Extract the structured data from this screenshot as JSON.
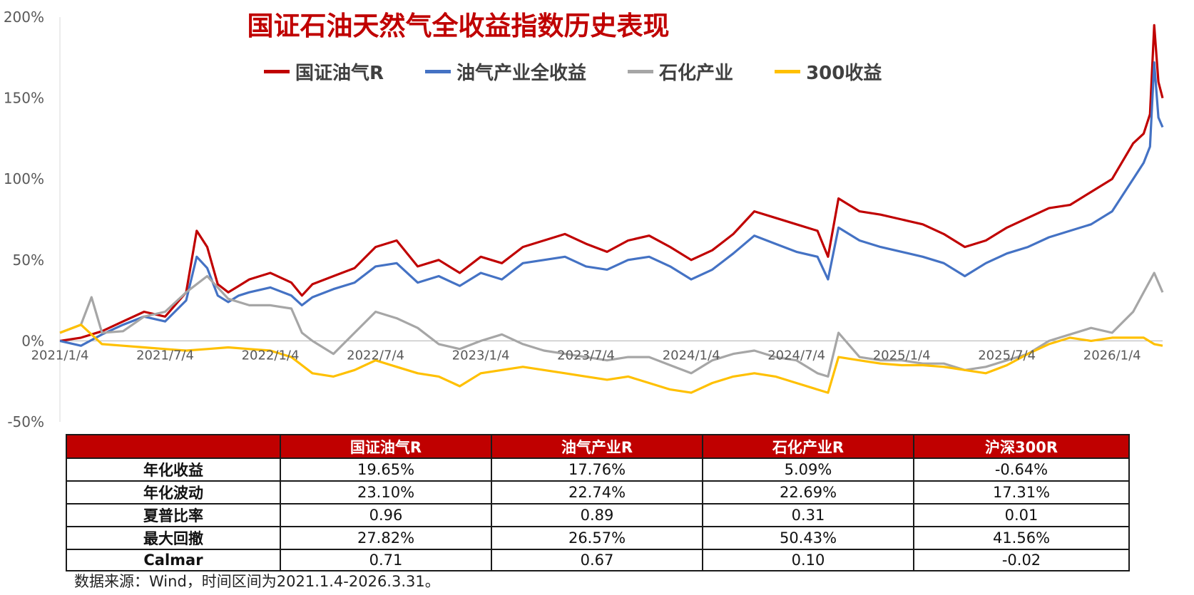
{
  "title": "国证石油天然气全收益指数历史表现",
  "legend": [
    {
      "label": "国证油气R",
      "color": "#c00000"
    },
    {
      "label": "油气产业全收益",
      "color": "#4472c4"
    },
    {
      "label": "石化产业",
      "color": "#a6a6a6"
    },
    {
      "label": "300收益",
      "color": "#ffc000"
    }
  ],
  "chart_data": {
    "type": "line",
    "ylim": [
      -50,
      200
    ],
    "yticks": [
      "200%",
      "150%",
      "100%",
      "50%",
      "0%",
      "-50%"
    ],
    "x_tick_labels": [
      "2021/1/4",
      "2021/7/4",
      "2022/1/4",
      "2022/7/4",
      "2023/1/4",
      "2023/7/4",
      "2024/1/4",
      "2024/7/4",
      "2025/1/4",
      "2025/7/4",
      "2026/1/4"
    ],
    "x_tick_positions": [
      0,
      0.5,
      1,
      1.5,
      2,
      2.5,
      3,
      3.5,
      4,
      4.5,
      5
    ],
    "xlim": [
      0,
      5.24
    ],
    "series": [
      {
        "name": "国证油气R",
        "color": "#c00000",
        "x": [
          0,
          0.1,
          0.2,
          0.3,
          0.4,
          0.5,
          0.6,
          0.65,
          0.7,
          0.75,
          0.8,
          0.85,
          0.9,
          1.0,
          1.1,
          1.15,
          1.2,
          1.3,
          1.4,
          1.5,
          1.6,
          1.7,
          1.8,
          1.9,
          2.0,
          2.1,
          2.2,
          2.3,
          2.4,
          2.5,
          2.6,
          2.7,
          2.8,
          2.9,
          3.0,
          3.1,
          3.2,
          3.3,
          3.4,
          3.5,
          3.6,
          3.65,
          3.7,
          3.8,
          3.9,
          4.0,
          4.1,
          4.2,
          4.3,
          4.4,
          4.5,
          4.6,
          4.7,
          4.8,
          4.9,
          5.0,
          5.1,
          5.15,
          5.18,
          5.2,
          5.22,
          5.24
        ],
        "y": [
          0,
          2,
          6,
          12,
          18,
          15,
          30,
          68,
          58,
          35,
          30,
          34,
          38,
          42,
          36,
          28,
          35,
          40,
          45,
          58,
          62,
          46,
          50,
          42,
          52,
          48,
          58,
          62,
          66,
          60,
          55,
          62,
          65,
          58,
          50,
          56,
          66,
          80,
          76,
          72,
          68,
          52,
          88,
          80,
          78,
          75,
          72,
          66,
          58,
          62,
          70,
          76,
          82,
          84,
          92,
          100,
          122,
          128,
          140,
          195,
          160,
          150
        ]
      },
      {
        "name": "油气产业全收益",
        "color": "#4472c4",
        "x": [
          0,
          0.1,
          0.2,
          0.3,
          0.4,
          0.5,
          0.6,
          0.65,
          0.7,
          0.75,
          0.8,
          0.85,
          0.9,
          1.0,
          1.1,
          1.15,
          1.2,
          1.3,
          1.4,
          1.5,
          1.6,
          1.7,
          1.8,
          1.9,
          2.0,
          2.1,
          2.2,
          2.3,
          2.4,
          2.5,
          2.6,
          2.7,
          2.8,
          2.9,
          3.0,
          3.1,
          3.2,
          3.3,
          3.4,
          3.5,
          3.6,
          3.65,
          3.7,
          3.8,
          3.9,
          4.0,
          4.1,
          4.2,
          4.3,
          4.4,
          4.5,
          4.6,
          4.7,
          4.8,
          4.9,
          5.0,
          5.1,
          5.15,
          5.18,
          5.2,
          5.22,
          5.24
        ],
        "y": [
          0,
          -3,
          4,
          10,
          15,
          12,
          25,
          52,
          45,
          28,
          24,
          28,
          30,
          33,
          28,
          22,
          27,
          32,
          36,
          46,
          48,
          36,
          40,
          34,
          42,
          38,
          48,
          50,
          52,
          46,
          44,
          50,
          52,
          46,
          38,
          44,
          54,
          65,
          60,
          55,
          52,
          38,
          70,
          62,
          58,
          55,
          52,
          48,
          40,
          48,
          54,
          58,
          64,
          68,
          72,
          80,
          100,
          110,
          120,
          172,
          138,
          132
        ]
      },
      {
        "name": "石化产业",
        "color": "#a6a6a6",
        "x": [
          0,
          0.1,
          0.15,
          0.2,
          0.3,
          0.4,
          0.5,
          0.6,
          0.7,
          0.8,
          0.9,
          1.0,
          1.1,
          1.15,
          1.2,
          1.3,
          1.4,
          1.5,
          1.6,
          1.7,
          1.8,
          1.9,
          2.0,
          2.1,
          2.2,
          2.3,
          2.4,
          2.5,
          2.6,
          2.7,
          2.8,
          2.9,
          3.0,
          3.1,
          3.2,
          3.3,
          3.4,
          3.5,
          3.6,
          3.65,
          3.7,
          3.8,
          3.9,
          4.0,
          4.1,
          4.2,
          4.3,
          4.4,
          4.5,
          4.6,
          4.7,
          4.8,
          4.9,
          5.0,
          5.1,
          5.15,
          5.2,
          5.24
        ],
        "y": [
          5,
          10,
          27,
          5,
          6,
          15,
          18,
          30,
          40,
          26,
          22,
          22,
          20,
          5,
          0,
          -8,
          5,
          18,
          14,
          8,
          -2,
          -5,
          0,
          4,
          -2,
          -6,
          -8,
          -10,
          -12,
          -10,
          -10,
          -15,
          -20,
          -12,
          -8,
          -6,
          -10,
          -12,
          -20,
          -22,
          5,
          -10,
          -12,
          -12,
          -14,
          -14,
          -18,
          -16,
          -12,
          -8,
          0,
          4,
          8,
          5,
          18,
          30,
          42,
          30
        ]
      },
      {
        "name": "300收益",
        "color": "#ffc000",
        "x": [
          0,
          0.1,
          0.2,
          0.3,
          0.4,
          0.5,
          0.6,
          0.7,
          0.8,
          0.9,
          1.0,
          1.1,
          1.15,
          1.2,
          1.3,
          1.4,
          1.5,
          1.6,
          1.7,
          1.8,
          1.9,
          2.0,
          2.1,
          2.2,
          2.3,
          2.4,
          2.5,
          2.6,
          2.7,
          2.8,
          2.9,
          3.0,
          3.1,
          3.2,
          3.3,
          3.4,
          3.5,
          3.6,
          3.65,
          3.7,
          3.8,
          3.9,
          4.0,
          4.1,
          4.2,
          4.3,
          4.4,
          4.5,
          4.6,
          4.7,
          4.8,
          4.9,
          5.0,
          5.1,
          5.15,
          5.2,
          5.24
        ],
        "y": [
          5,
          10,
          -2,
          -3,
          -4,
          -5,
          -6,
          -5,
          -4,
          -5,
          -6,
          -10,
          -15,
          -20,
          -22,
          -18,
          -12,
          -16,
          -20,
          -22,
          -28,
          -20,
          -18,
          -16,
          -18,
          -20,
          -22,
          -24,
          -22,
          -26,
          -30,
          -32,
          -26,
          -22,
          -20,
          -22,
          -26,
          -30,
          -32,
          -10,
          -12,
          -14,
          -15,
          -15,
          -16,
          -18,
          -20,
          -15,
          -8,
          -2,
          2,
          0,
          2,
          2,
          2,
          -2,
          -3
        ]
      }
    ]
  },
  "table": {
    "headers": [
      "",
      "国证油气R",
      "油气产业R",
      "石化产业R",
      "沪深300R"
    ],
    "rows": [
      [
        "年化收益",
        "19.65%",
        "17.76%",
        "5.09%",
        "-0.64%"
      ],
      [
        "年化波动",
        "23.10%",
        "22.74%",
        "22.69%",
        "17.31%"
      ],
      [
        "夏普比率",
        "0.96",
        "0.89",
        "0.31",
        "0.01"
      ],
      [
        "最大回撤",
        "27.82%",
        "26.57%",
        "50.43%",
        "41.56%"
      ],
      [
        "Calmar",
        "0.71",
        "0.67",
        "0.10",
        "-0.02"
      ]
    ]
  },
  "source": "数据来源：Wind，时间区间为2021.1.4-2026.3.31。"
}
